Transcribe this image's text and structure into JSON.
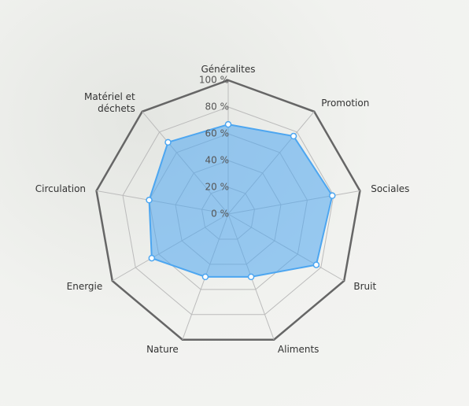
{
  "chart_data": {
    "type": "radar",
    "categories": [
      "Généralites",
      "Promotion",
      "Sociales",
      "Bruit",
      "Aliments",
      "Nature",
      "Energie",
      "Circulation",
      "Matériel et déchets"
    ],
    "series": [
      {
        "color": "#4da6f0",
        "values": [
          67,
          76,
          79,
          76,
          50,
          50,
          66,
          60,
          70
        ]
      }
    ],
    "ylim": [
      0,
      100
    ],
    "yticks": [
      {
        "value": 0,
        "label": "0 %"
      },
      {
        "value": 20,
        "label": "20 %"
      },
      {
        "value": 40,
        "label": "40 %"
      },
      {
        "value": 60,
        "label": "60 %"
      },
      {
        "value": 80,
        "label": "80 %"
      },
      {
        "value": 100,
        "label": "100 %"
      }
    ],
    "grid": true
  }
}
